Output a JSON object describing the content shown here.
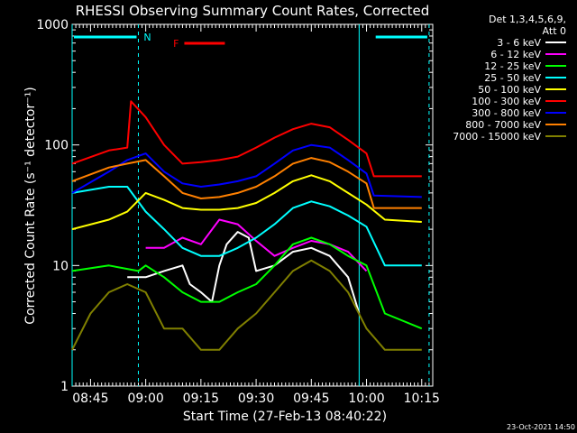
{
  "chart_data": {
    "type": "line",
    "title": "RHESSI Observing Summary Count Rates, Corrected",
    "xlabel": "Start Time (27-Feb-13 08:40:22)",
    "ylabel": "Corrected Count Rate (s⁻¹ detector⁻¹)",
    "y_scale": "log",
    "ylim": [
      1,
      1000
    ],
    "xlim": [
      "08:40",
      "10:18"
    ],
    "x_ticks": [
      "08:45",
      "09:00",
      "09:15",
      "09:30",
      "09:45",
      "10:00",
      "10:15"
    ],
    "y_ticks": [
      "1",
      "10",
      "100",
      "1000"
    ],
    "legend_header": [
      "Det 1,3,4,5,6,9,",
      "Att 0"
    ],
    "legend_placement": "right",
    "flags": [
      {
        "label": "N",
        "color": "#00ffff",
        "spans": [
          [
            "08:40",
            "08:58"
          ],
          [
            "10:02",
            "10:17"
          ]
        ]
      },
      {
        "label": "F",
        "color": "#ff0000",
        "spans": [
          [
            "09:10",
            "09:22"
          ]
        ]
      }
    ],
    "markers": {
      "vertical_lines_dashed": [
        "08:58",
        "10:17"
      ],
      "vertical_lines_solid": [
        "08:40",
        "09:58"
      ],
      "color": "#00ffff"
    },
    "series": [
      {
        "name": "3 - 6 keV",
        "color": "#ffffff",
        "x": [
          "08:55",
          "09:00",
          "09:05",
          "09:10",
          "09:12",
          "09:15",
          "09:18",
          "09:20",
          "09:22",
          "09:25",
          "09:28",
          "09:30",
          "09:35",
          "09:40",
          "09:45",
          "09:50",
          "09:55",
          "09:58"
        ],
        "values": [
          8,
          8,
          9,
          10,
          7,
          6,
          5,
          10,
          15,
          19,
          17,
          9,
          10,
          13,
          14,
          12,
          8,
          4
        ]
      },
      {
        "name": "6 - 12 keV",
        "color": "#ff00ff",
        "x": [
          "09:00",
          "09:05",
          "09:10",
          "09:15",
          "09:20",
          "09:25",
          "09:30",
          "09:35",
          "09:40",
          "09:45",
          "09:50",
          "09:55",
          "10:00"
        ],
        "values": [
          14,
          14,
          17,
          15,
          24,
          22,
          16,
          12,
          14,
          16,
          15,
          13,
          9
        ]
      },
      {
        "name": "12 - 25 keV",
        "color": "#00ff00",
        "x": [
          "08:40",
          "08:50",
          "08:58",
          "09:00",
          "09:05",
          "09:10",
          "09:15",
          "09:20",
          "09:25",
          "09:30",
          "09:35",
          "09:40",
          "09:45",
          "09:50",
          "09:55",
          "10:00",
          "10:05",
          "10:15"
        ],
        "values": [
          9,
          10,
          9,
          10,
          8,
          6,
          5,
          5,
          6,
          7,
          10,
          15,
          17,
          15,
          12,
          10,
          4,
          3
        ]
      },
      {
        "name": "25 - 50 keV",
        "color": "#00ffff",
        "x": [
          "08:40",
          "08:50",
          "08:55",
          "09:00",
          "09:05",
          "09:10",
          "09:15",
          "09:20",
          "09:25",
          "09:30",
          "09:35",
          "09:40",
          "09:45",
          "09:50",
          "09:55",
          "10:00",
          "10:05",
          "10:15"
        ],
        "values": [
          40,
          45,
          45,
          28,
          20,
          14,
          12,
          12,
          14,
          17,
          22,
          30,
          34,
          31,
          26,
          21,
          10,
          10
        ]
      },
      {
        "name": "50 - 100 keV",
        "color": "#ffff00",
        "x": [
          "08:40",
          "08:50",
          "08:55",
          "09:00",
          "09:05",
          "09:10",
          "09:15",
          "09:20",
          "09:25",
          "09:30",
          "09:35",
          "09:40",
          "09:45",
          "09:50",
          "09:55",
          "10:00",
          "10:05",
          "10:15"
        ],
        "values": [
          20,
          24,
          28,
          40,
          35,
          30,
          29,
          29,
          30,
          33,
          40,
          50,
          56,
          50,
          40,
          32,
          24,
          23
        ]
      },
      {
        "name": "100 - 300 keV",
        "color": "#ff0000",
        "x": [
          "08:40",
          "08:50",
          "08:55",
          "08:56",
          "09:00",
          "09:05",
          "09:10",
          "09:15",
          "09:20",
          "09:25",
          "09:30",
          "09:35",
          "09:40",
          "09:45",
          "09:50",
          "09:55",
          "10:00",
          "10:02",
          "10:15"
        ],
        "values": [
          70,
          90,
          95,
          230,
          170,
          100,
          70,
          72,
          75,
          80,
          95,
          115,
          135,
          150,
          140,
          110,
          85,
          55,
          55
        ]
      },
      {
        "name": "300 - 800 keV",
        "color": "#0000ff",
        "x": [
          "08:40",
          "08:50",
          "08:55",
          "09:00",
          "09:05",
          "09:10",
          "09:15",
          "09:20",
          "09:25",
          "09:30",
          "09:35",
          "09:40",
          "09:45",
          "09:50",
          "09:55",
          "10:00",
          "10:02",
          "10:15"
        ],
        "values": [
          40,
          60,
          75,
          85,
          60,
          48,
          45,
          47,
          50,
          55,
          70,
          90,
          100,
          95,
          75,
          58,
          38,
          37
        ]
      },
      {
        "name": "800 - 7000 keV",
        "color": "#ff8000",
        "x": [
          "08:40",
          "08:50",
          "08:55",
          "09:00",
          "09:05",
          "09:10",
          "09:15",
          "09:20",
          "09:25",
          "09:30",
          "09:35",
          "09:40",
          "09:45",
          "09:50",
          "09:55",
          "10:00",
          "10:02",
          "10:15"
        ],
        "values": [
          50,
          65,
          70,
          75,
          55,
          40,
          36,
          37,
          40,
          45,
          55,
          70,
          78,
          72,
          60,
          48,
          30,
          30
        ]
      },
      {
        "name": "7000 - 15000 keV",
        "color": "#808000",
        "x": [
          "08:40",
          "08:45",
          "08:50",
          "08:55",
          "09:00",
          "09:05",
          "09:10",
          "09:15",
          "09:20",
          "09:25",
          "09:30",
          "09:35",
          "09:40",
          "09:45",
          "09:50",
          "09:55",
          "10:00",
          "10:05",
          "10:15"
        ],
        "values": [
          2,
          4,
          6,
          7,
          6,
          3,
          3,
          2,
          2,
          3,
          4,
          6,
          9,
          11,
          9,
          6,
          3,
          2,
          2
        ]
      }
    ]
  },
  "footer_timestamp": "23-Oct-2021 14:50"
}
